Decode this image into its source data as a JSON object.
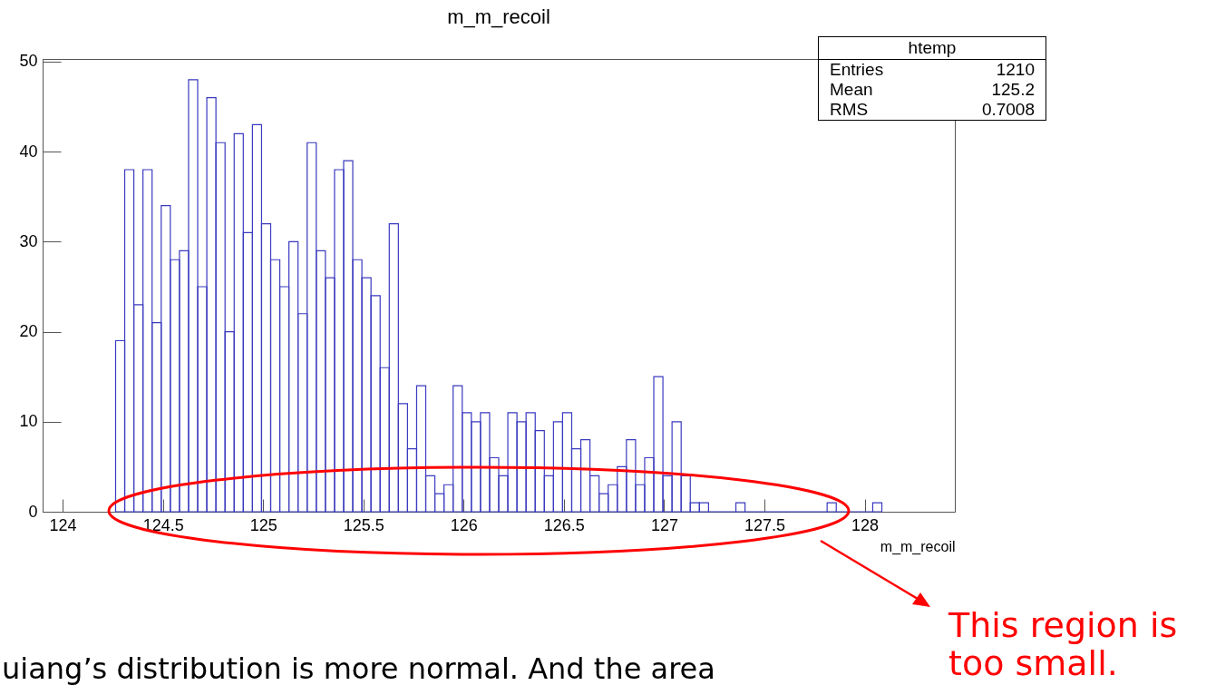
{
  "chart_data": {
    "type": "histogram",
    "title": "m_m_recoil",
    "xlabel": "m_m_recoil",
    "color": "#3a3ac0",
    "bins": [
      124.264,
      124.3095,
      124.355,
      124.4005,
      124.446,
      124.4915,
      124.537,
      124.5825,
      124.628,
      124.6735,
      124.719,
      124.7645,
      124.81,
      124.8555,
      124.901,
      124.9465,
      124.992,
      125.0375,
      125.083,
      125.1285,
      125.174,
      125.2195,
      125.265,
      125.3105,
      125.356,
      125.4015,
      125.447,
      125.4925,
      125.538,
      125.5835,
      125.629,
      125.6745,
      125.72,
      125.7655,
      125.811,
      125.8565,
      125.902,
      125.9475,
      125.993,
      126.0385,
      126.084,
      126.1295,
      126.175,
      126.2205,
      126.266,
      126.3115,
      126.357,
      126.4025,
      126.448,
      126.4935,
      126.539,
      126.5845,
      126.63,
      126.6755,
      126.721,
      126.7665,
      126.812,
      126.8575,
      126.903,
      126.9485,
      126.994,
      127.0395,
      127.085,
      127.1305,
      127.176,
      127.2215,
      127.267,
      127.3125,
      127.358,
      127.4035,
      127.449,
      127.4945,
      127.54,
      127.5855,
      127.631,
      127.6765,
      127.722,
      127.7675,
      127.813,
      127.8585,
      127.904,
      127.9495,
      127.995,
      128.0405,
      128.086
    ],
    "values": [
      19,
      38,
      23,
      38,
      21,
      34,
      28,
      29,
      48,
      25,
      46,
      41,
      20,
      42,
      31,
      43,
      32,
      28,
      25,
      30,
      22,
      41,
      29,
      26,
      38,
      39,
      28,
      26,
      24,
      16,
      32,
      12,
      7,
      14,
      4,
      2,
      3,
      14,
      11,
      10,
      11,
      6,
      4,
      11,
      10,
      11,
      9,
      4,
      10,
      11,
      7,
      8,
      4,
      2,
      3,
      5,
      8,
      3,
      6,
      15,
      4,
      10,
      4,
      1,
      1,
      0,
      0,
      0,
      1,
      0,
      0,
      0,
      0,
      0,
      0,
      0,
      0,
      0,
      1,
      0,
      0,
      0,
      0,
      1
    ],
    "xlim": [
      123.9,
      128.45
    ],
    "xticks": [
      124,
      124.5,
      125,
      125.5,
      126,
      126.5,
      127,
      127.5,
      128
    ],
    "ylim": [
      0,
      50.3
    ],
    "yticks": [
      0,
      10,
      20,
      30,
      40,
      50
    ],
    "annotations": [
      "htemp",
      "Entries",
      "1210",
      "Mean",
      "125.2",
      "RMS",
      "0.7008",
      "This region is too small.",
      "uiang’s distribution is more normal. And the area"
    ]
  }
}
